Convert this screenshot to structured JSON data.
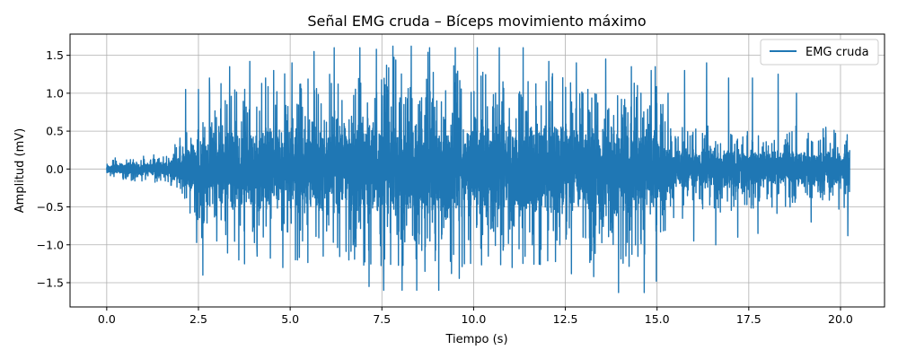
{
  "chart_data": {
    "type": "line",
    "title": "Señal EMG cruda – Bíceps movimiento máximo",
    "xlabel": "Tiempo (s)",
    "ylabel": "Amplitud (mV)",
    "xlim": [
      -1.0,
      21.2
    ],
    "ylim": [
      -1.82,
      1.78
    ],
    "x_ticks": [
      0.0,
      2.5,
      5.0,
      7.5,
      10.0,
      12.5,
      15.0,
      17.5,
      20.0
    ],
    "x_tick_labels": [
      "0.0",
      "2.5",
      "5.0",
      "7.5",
      "10.0",
      "12.5",
      "15.0",
      "17.5",
      "20.0"
    ],
    "y_ticks": [
      -1.5,
      -1.0,
      -0.5,
      0.0,
      0.5,
      1.0,
      1.5
    ],
    "y_tick_labels": [
      "−1.5",
      "−1.0",
      "−0.5",
      "0.0",
      "0.5",
      "1.0",
      "1.5"
    ],
    "grid": true,
    "legend_position": "top-right",
    "series": [
      {
        "name": "EMG cruda",
        "color": "#1f77b4",
        "x_start": 0.0,
        "x_end": 20.25,
        "envelope": [
          {
            "t": 0.0,
            "peak": 0.18
          },
          {
            "t": 1.6,
            "peak": 0.22
          },
          {
            "t": 2.0,
            "peak": 0.5
          },
          {
            "t": 2.5,
            "peak": 0.95
          },
          {
            "t": 3.0,
            "peak": 1.2
          },
          {
            "t": 5.0,
            "peak": 1.4
          },
          {
            "t": 7.5,
            "peak": 1.62
          },
          {
            "t": 10.0,
            "peak": 1.6
          },
          {
            "t": 12.5,
            "peak": 1.45
          },
          {
            "t": 15.0,
            "peak": 1.4
          },
          {
            "t": 15.3,
            "peak": 0.7
          },
          {
            "t": 17.5,
            "peak": 0.65
          },
          {
            "t": 20.25,
            "peak": 0.55
          }
        ],
        "peaks": [
          {
            "t": 2.15,
            "y": 1.05
          },
          {
            "t": 2.45,
            "y": -0.97
          },
          {
            "t": 2.5,
            "y": 1.05
          },
          {
            "t": 2.62,
            "y": -1.4
          },
          {
            "t": 2.8,
            "y": 1.2
          },
          {
            "t": 3.0,
            "y": -0.95
          },
          {
            "t": 3.35,
            "y": 1.35
          },
          {
            "t": 3.6,
            "y": -1.2
          },
          {
            "t": 3.9,
            "y": 1.42
          },
          {
            "t": 4.1,
            "y": -1.15
          },
          {
            "t": 4.55,
            "y": 1.3
          },
          {
            "t": 4.8,
            "y": -1.3
          },
          {
            "t": 5.05,
            "y": 1.4
          },
          {
            "t": 5.2,
            "y": -1.2
          },
          {
            "t": 5.65,
            "y": 1.55
          },
          {
            "t": 5.9,
            "y": -1.15
          },
          {
            "t": 6.2,
            "y": 1.6
          },
          {
            "t": 6.6,
            "y": -1.2
          },
          {
            "t": 6.9,
            "y": 1.6
          },
          {
            "t": 7.15,
            "y": -1.55
          },
          {
            "t": 7.35,
            "y": 1.58
          },
          {
            "t": 7.55,
            "y": -1.6
          },
          {
            "t": 7.8,
            "y": 1.62
          },
          {
            "t": 8.05,
            "y": -1.6
          },
          {
            "t": 8.3,
            "y": 1.62
          },
          {
            "t": 8.45,
            "y": -1.6
          },
          {
            "t": 8.8,
            "y": 1.6
          },
          {
            "t": 9.05,
            "y": -1.6
          },
          {
            "t": 9.5,
            "y": 1.6
          },
          {
            "t": 9.75,
            "y": -1.25
          },
          {
            "t": 10.1,
            "y": 1.6
          },
          {
            "t": 10.4,
            "y": -1.15
          },
          {
            "t": 10.7,
            "y": 1.6
          },
          {
            "t": 11.05,
            "y": -1.3
          },
          {
            "t": 11.35,
            "y": 1.6
          },
          {
            "t": 11.6,
            "y": -1.0
          },
          {
            "t": 12.05,
            "y": 1.42
          },
          {
            "t": 12.35,
            "y": -1.0
          },
          {
            "t": 12.8,
            "y": 1.4
          },
          {
            "t": 13.2,
            "y": -1.2
          },
          {
            "t": 13.6,
            "y": 1.45
          },
          {
            "t": 13.95,
            "y": -1.63
          },
          {
            "t": 14.3,
            "y": 1.35
          },
          {
            "t": 14.65,
            "y": -1.63
          },
          {
            "t": 14.95,
            "y": 1.35
          },
          {
            "t": 14.98,
            "y": -1.48
          },
          {
            "t": 15.3,
            "y": 1.0
          },
          {
            "t": 15.75,
            "y": 1.3
          },
          {
            "t": 16.0,
            "y": -0.95
          },
          {
            "t": 16.35,
            "y": 1.4
          },
          {
            "t": 16.6,
            "y": -1.0
          },
          {
            "t": 16.95,
            "y": 1.2
          },
          {
            "t": 17.2,
            "y": -0.9
          },
          {
            "t": 17.6,
            "y": 1.2
          },
          {
            "t": 17.75,
            "y": -0.85
          },
          {
            "t": 18.3,
            "y": 1.25
          },
          {
            "t": 18.8,
            "y": 1.0
          },
          {
            "t": 19.2,
            "y": -0.7
          },
          {
            "t": 19.6,
            "y": 0.55
          },
          {
            "t": 20.2,
            "y": -0.88
          }
        ]
      }
    ]
  }
}
